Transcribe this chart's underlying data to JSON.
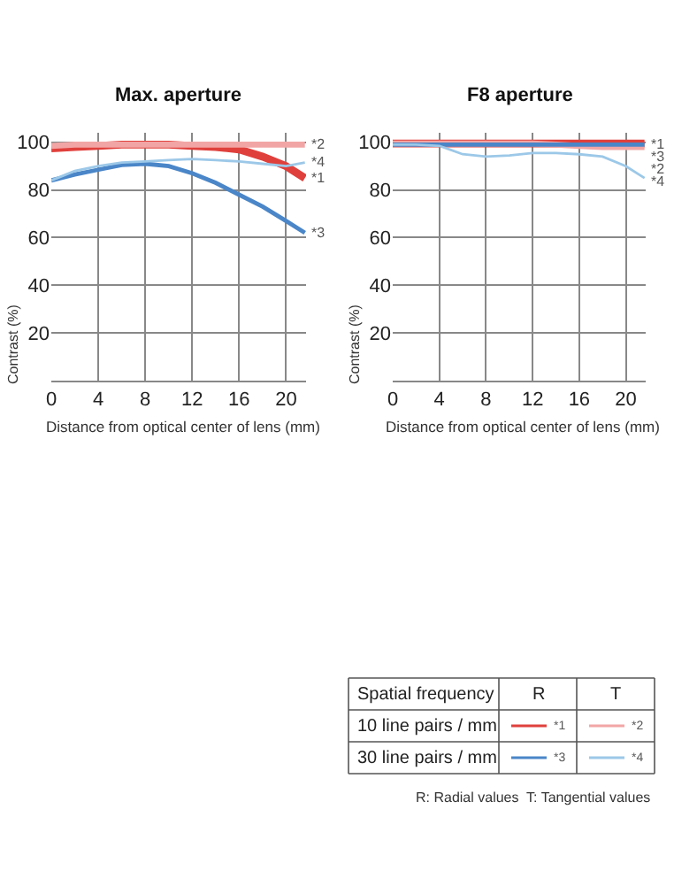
{
  "chart_data": [
    {
      "type": "line",
      "title": "Max. aperture",
      "xlabel": "Distance from optical center of lens (mm)",
      "ylabel": "Contrast (%)",
      "x": [
        0,
        2,
        4,
        6,
        8,
        10,
        12,
        14,
        16,
        18,
        20,
        21.6
      ],
      "xlim": [
        0,
        21.7
      ],
      "xticks": [
        0,
        4,
        8,
        12,
        16,
        20
      ],
      "ylim": [
        0,
        104
      ],
      "yticks": [
        20,
        40,
        60,
        80,
        100
      ],
      "grid": true,
      "marker": "none",
      "line_style": "solid",
      "series": [
        {
          "name": "*1",
          "color": "#e0403c",
          "values": [
            97.5,
            98,
            98.5,
            99,
            99,
            99,
            98.5,
            98,
            97,
            94,
            90,
            85
          ]
        },
        {
          "name": "*2",
          "color": "#f2a5a5",
          "values": [
            98.5,
            99,
            99,
            99,
            99,
            99,
            99,
            99,
            99,
            99,
            99,
            99
          ]
        },
        {
          "name": "*3",
          "color": "#4a86c8",
          "values": [
            84,
            86.5,
            88.5,
            90.5,
            91,
            90,
            87,
            83,
            78,
            73,
            67,
            62
          ]
        },
        {
          "name": "*4",
          "color": "#9cc8e8",
          "values": [
            84,
            88,
            90,
            91.5,
            92,
            92.5,
            93,
            92.5,
            92,
            91,
            90,
            91.5
          ]
        }
      ]
    },
    {
      "type": "line",
      "title": "F8 aperture",
      "xlabel": "Distance from optical center of lens (mm)",
      "ylabel": "Contrast (%)",
      "x": [
        0,
        2,
        4,
        6,
        8,
        10,
        12,
        14,
        16,
        18,
        20,
        21.6
      ],
      "xlim": [
        0,
        21.7
      ],
      "xticks": [
        0,
        4,
        8,
        12,
        16,
        20
      ],
      "ylim": [
        0,
        104
      ],
      "yticks": [
        20,
        40,
        60,
        80,
        100
      ],
      "grid": true,
      "marker": "none",
      "line_style": "solid",
      "legend": "bottom",
      "series": [
        {
          "name": "*1",
          "color": "#e0403c",
          "values": [
            99.5,
            99.5,
            99.5,
            99.5,
            99.5,
            99.5,
            99.5,
            99.5,
            99.5,
            99.5,
            99.5,
            99.5
          ]
        },
        {
          "name": "*2",
          "color": "#f2a5a5",
          "values": [
            99.5,
            99.5,
            99.5,
            99.5,
            99.5,
            99.5,
            99.5,
            99,
            98.5,
            98,
            98,
            98
          ]
        },
        {
          "name": "*3",
          "color": "#4a86c8",
          "values": [
            99,
            99,
            99,
            99,
            99,
            99,
            99,
            99,
            99,
            99,
            99,
            99
          ]
        },
        {
          "name": "*4",
          "color": "#9cc8e8",
          "values": [
            99,
            99,
            98.5,
            95,
            94,
            94.5,
            95.5,
            95.5,
            95,
            94,
            90,
            85
          ]
        }
      ],
      "annotations": [
        "Spatial frequency",
        "R",
        "T",
        "10 line pairs / mm",
        "30 line pairs / mm",
        "R: Radial values  T: Tangential values"
      ]
    }
  ]
}
